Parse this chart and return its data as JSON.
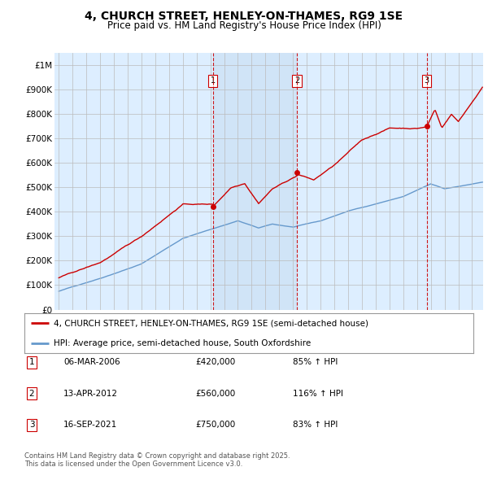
{
  "title": "4, CHURCH STREET, HENLEY-ON-THAMES, RG9 1SE",
  "subtitle": "Price paid vs. HM Land Registry's House Price Index (HPI)",
  "legend_line1": "4, CHURCH STREET, HENLEY-ON-THAMES, RG9 1SE (semi-detached house)",
  "legend_line2": "HPI: Average price, semi-detached house, South Oxfordshire",
  "footer": "Contains HM Land Registry data © Crown copyright and database right 2025.\nThis data is licensed under the Open Government Licence v3.0.",
  "sale_annotations": [
    {
      "label": "1",
      "date": "06-MAR-2006",
      "price": "£420,000",
      "hpi": "85% ↑ HPI"
    },
    {
      "label": "2",
      "date": "13-APR-2012",
      "price": "£560,000",
      "hpi": "116% ↑ HPI"
    },
    {
      "label": "3",
      "date": "16-SEP-2021",
      "price": "£750,000",
      "hpi": "83% ↑ HPI"
    }
  ],
  "sale_dates": [
    2006.18,
    2012.28,
    2021.71
  ],
  "sale_prices": [
    420000,
    560000,
    750000
  ],
  "hpi_color": "#6699cc",
  "price_color": "#cc0000",
  "highlight_color": "#d0e4f7",
  "background_color": "#ddeeff",
  "ylim": [
    0,
    1050000
  ],
  "xlim": [
    1994.7,
    2025.8
  ]
}
